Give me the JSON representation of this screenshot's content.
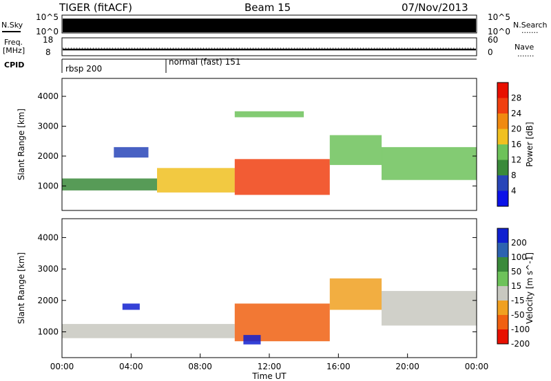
{
  "header": {
    "title": "TIGER (fitACF)",
    "beam": "Beam 15",
    "date": "07/Nov/2013"
  },
  "top_panels": {
    "nsky_label": "N.Sky",
    "nsky_ticks": [
      "10^5",
      "10^0"
    ],
    "nsearch_label": "N.Search",
    "nsearch_ticks": [
      "10^5",
      "10^0"
    ],
    "freq_label_1": "Freq.",
    "freq_label_2": "[MHz]",
    "freq_ticks": [
      "18",
      "8"
    ],
    "nave_label": "Nave",
    "nave_ticks": [
      "60",
      "0"
    ],
    "cpid_label": "CPID",
    "cpid_modes": [
      "rbsp 200",
      "normal (fast) 151"
    ],
    "legend_dots": "......."
  },
  "chart_data": [
    {
      "type": "heatmap",
      "name": "power",
      "ylabel": "Slant Range [km]",
      "yticks": [
        1000,
        2000,
        3000,
        4000
      ],
      "ylim": [
        180,
        4600
      ],
      "xlim_hours": [
        0,
        24
      ],
      "colorbar": {
        "label": "Power [dB]",
        "ticks": [
          "4",
          "8",
          "12",
          "16",
          "20",
          "24",
          "28"
        ],
        "colors": [
          "#0b12e8",
          "#2845b8",
          "#3a8a3a",
          "#6dc25a",
          "#f0c020",
          "#f08a10",
          "#f04010",
          "#e81000"
        ]
      },
      "echo_bands": [
        {
          "t0": 0.0,
          "t1": 5.5,
          "r0": 850,
          "r1": 1250,
          "level": 2
        },
        {
          "t0": 5.5,
          "t1": 10.0,
          "r0": 780,
          "r1": 1600,
          "level": 4
        },
        {
          "t0": 10.0,
          "t1": 15.5,
          "r0": 700,
          "r1": 1900,
          "level": 6
        },
        {
          "t0": 15.5,
          "t1": 18.5,
          "r0": 1700,
          "r1": 2700,
          "level": 3
        },
        {
          "t0": 18.5,
          "t1": 24.0,
          "r0": 1200,
          "r1": 2300,
          "level": 3
        },
        {
          "t0": 3.0,
          "t1": 5.0,
          "r0": 1950,
          "r1": 2300,
          "level": 1
        },
        {
          "t0": 10.0,
          "t1": 14.0,
          "r0": 3300,
          "r1": 3500,
          "level": 3
        }
      ]
    },
    {
      "type": "heatmap",
      "name": "velocity",
      "ylabel": "Slant Range [km]",
      "yticks": [
        1000,
        2000,
        3000,
        4000
      ],
      "ylim": [
        180,
        4600
      ],
      "xlim_hours": [
        0,
        24
      ],
      "xticks": [
        "00:00",
        "04:00",
        "08:00",
        "12:00",
        "16:00",
        "20:00",
        "00:00"
      ],
      "xlabel": "Time UT",
      "colorbar": {
        "label": "Velocity [m s^-1]",
        "ticks": [
          "200",
          "100",
          "50",
          "15",
          "-15",
          "-50",
          "-100",
          "-200"
        ],
        "colors": [
          "#1020d0",
          "#2d63b0",
          "#3a8a3a",
          "#6dc25a",
          "#c8c8c0",
          "#f0a020",
          "#f06010",
          "#e81000"
        ]
      },
      "echo_bands": [
        {
          "t0": 0.0,
          "t1": 10.0,
          "r0": 800,
          "r1": 1250,
          "level": 4
        },
        {
          "t0": 10.0,
          "t1": 15.5,
          "r0": 700,
          "r1": 1900,
          "level": 6
        },
        {
          "t0": 15.5,
          "t1": 18.5,
          "r0": 1700,
          "r1": 2700,
          "level": 5
        },
        {
          "t0": 18.5,
          "t1": 24.0,
          "r0": 1200,
          "r1": 2300,
          "level": 4
        },
        {
          "t0": 3.5,
          "t1": 4.5,
          "r0": 1700,
          "r1": 1900,
          "level": 0
        },
        {
          "t0": 10.5,
          "t1": 11.5,
          "r0": 600,
          "r1": 900,
          "level": 0
        }
      ]
    }
  ]
}
